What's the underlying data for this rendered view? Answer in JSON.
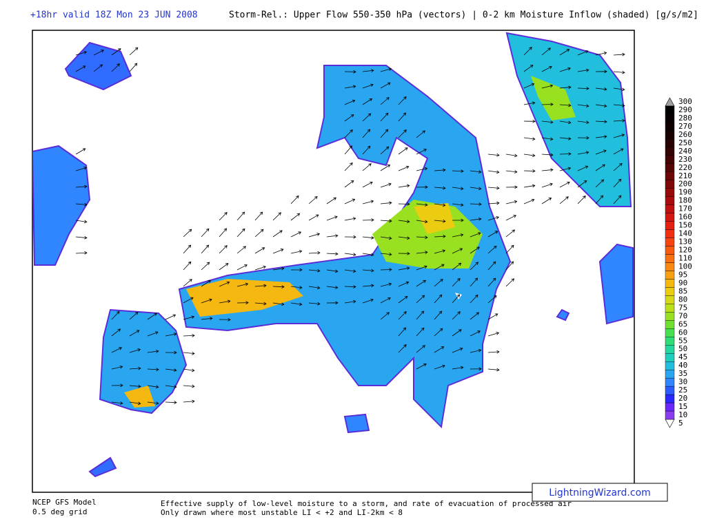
{
  "header": {
    "run": "+18hr valid 18Z Mon 23 JUN 2008",
    "title": "Storm-Rel.: Upper Flow 550-350 hPa (vectors) | 0-2 km Moisture Inflow (shaded) [g/s/m2]"
  },
  "colorbar": {
    "ticks": [
      5,
      10,
      15,
      20,
      25,
      30,
      35,
      40,
      45,
      50,
      55,
      60,
      65,
      70,
      75,
      80,
      85,
      90,
      95,
      100,
      110,
      120,
      130,
      140,
      150,
      160,
      170,
      180,
      190,
      200,
      210,
      220,
      230,
      240,
      250,
      260,
      270,
      280,
      290,
      300
    ],
    "colors": [
      "#ffffff",
      "#8c3cf0",
      "#6a28ff",
      "#2828ff",
      "#2a5cff",
      "#2f86ff",
      "#2aa6f0",
      "#22bede",
      "#1ecfc0",
      "#22d8a0",
      "#2edc78",
      "#48e050",
      "#70e030",
      "#98e020",
      "#bce018",
      "#d8d818",
      "#eccc10",
      "#f4b810",
      "#f8a010",
      "#f88a10",
      "#f87010",
      "#f85a10",
      "#f84410",
      "#f03010",
      "#e42010",
      "#d41810",
      "#c01010",
      "#aa0c0c",
      "#960a0a",
      "#800808",
      "#6a0606",
      "#560505",
      "#440404",
      "#340303",
      "#260202",
      "#1a0202",
      "#100101",
      "#080000",
      "#000000",
      "#a0a0a0"
    ]
  },
  "footer": {
    "model": "NCEP GFS Model",
    "grid": "0.5 deg grid",
    "note1": "Effective supply of low-level moisture to a storm, and rate of evacuation of processed air",
    "note2": "Only drawn where most unstable LI < +2 and LI-2km < 8",
    "credit": "LightningWizard.com"
  }
}
